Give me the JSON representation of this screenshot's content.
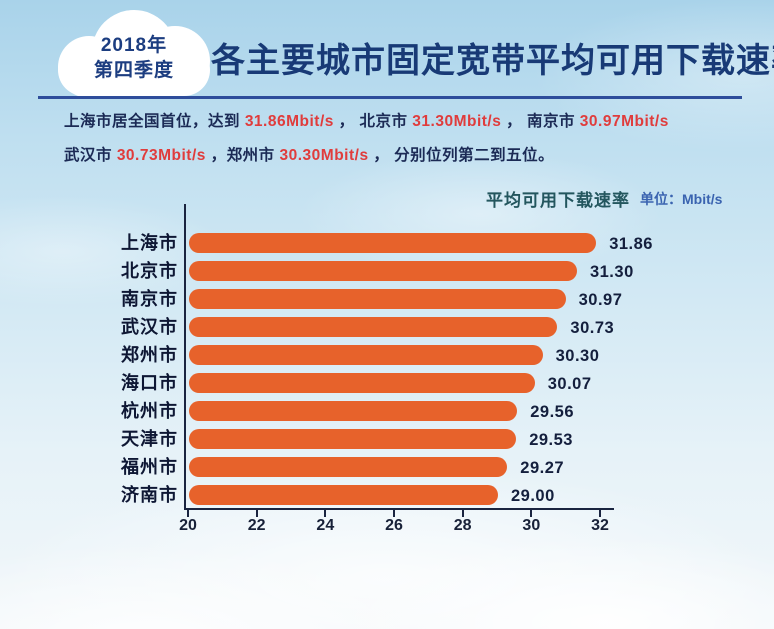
{
  "badge": {
    "line1": "2018年",
    "line2": "第四季度"
  },
  "header": {
    "title": "各主要城市固定宽带平均可用下载速率"
  },
  "intro": {
    "line1": [
      "上海市居全国首位，达到 ",
      "31.86Mbit/s",
      " ， 北京市 ",
      "31.30Mbit/s",
      " ， 南京市 ",
      "30.97Mbit/s"
    ],
    "line2": [
      "武汉市 ",
      "30.73Mbit/s",
      " ，郑州市 ",
      "30.30Mbit/s",
      " ， 分别位列第二到五位。"
    ]
  },
  "chart_data": {
    "type": "bar",
    "orientation": "horizontal",
    "title": "平均可用下载速率",
    "unit_label": "单位：Mbit/s",
    "categories": [
      "上海市",
      "北京市",
      "南京市",
      "武汉市",
      "郑州市",
      "海口市",
      "杭州市",
      "天津市",
      "福州市",
      "济南市"
    ],
    "values": [
      31.86,
      31.3,
      30.97,
      30.73,
      30.3,
      30.07,
      29.56,
      29.53,
      29.27,
      29.0
    ],
    "value_labels": [
      "31.86",
      "31.30",
      "30.97",
      "30.73",
      "30.30",
      "30.07",
      "29.56",
      "29.53",
      "29.27",
      "29.00"
    ],
    "xlim": [
      20,
      32
    ],
    "x_ticks": [
      "20",
      "22",
      "24",
      "26",
      "28",
      "30",
      "32"
    ],
    "bar_color": "#e7622b",
    "grid": false,
    "legend": false
  }
}
